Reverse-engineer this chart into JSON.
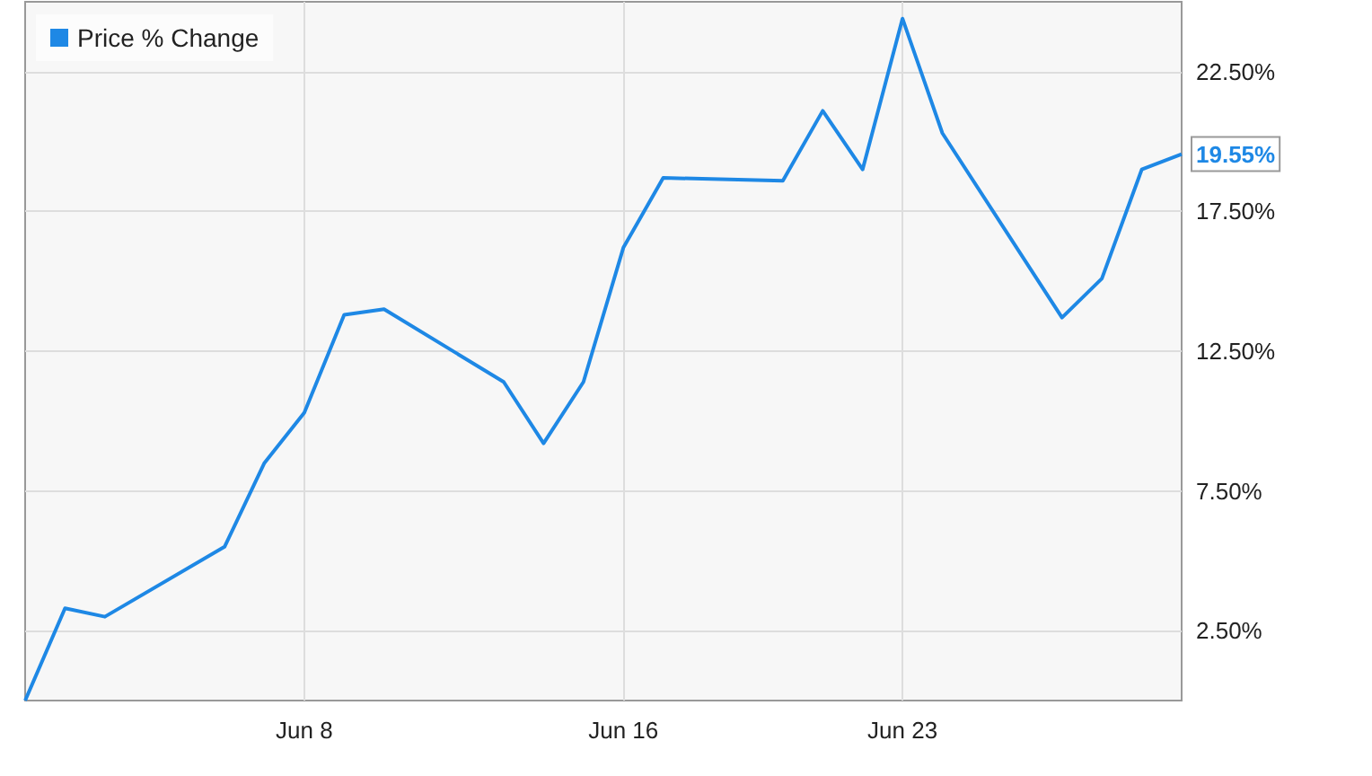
{
  "chart_data": {
    "type": "line",
    "marker": "none",
    "line_style": "solid",
    "grid": true,
    "legend": "top left",
    "x": [
      "--06-01",
      "--06-02",
      "--06-03",
      "--06-06",
      "--06-07",
      "--06-08",
      "--06-09",
      "--06-10",
      "--06-13",
      "--06-14",
      "--06-15",
      "--06-16",
      "--06-17",
      "--06-20",
      "--06-21",
      "--06-22",
      "--06-23",
      "--06-24",
      "--06-27",
      "--06-28",
      "--06-29",
      "--06-30"
    ],
    "series": [
      {
        "name": "Price % Change",
        "color": "#1e88e5",
        "values": [
          0,
          3.3,
          3.0,
          5.5,
          8.5,
          10.3,
          13.8,
          14.0,
          11.4,
          9.2,
          11.4,
          16.2,
          18.7,
          18.6,
          21.1,
          19.0,
          24.4,
          20.3,
          13.7,
          15.1,
          19.0,
          19.55
        ]
      }
    ],
    "xlim": [
      "--06-01",
      "--06-30"
    ],
    "xticks": [
      {
        "value": "--06-08",
        "label": "Jun 8"
      },
      {
        "value": "--06-16",
        "label": "Jun 16"
      },
      {
        "value": "--06-23",
        "label": "Jun 23"
      }
    ],
    "ylim": [
      0,
      25
    ],
    "yticks": [
      {
        "value": 2.5,
        "label": "2.50%"
      },
      {
        "value": 7.5,
        "label": "7.50%"
      },
      {
        "value": 12.5,
        "label": "12.50%"
      },
      {
        "value": 17.5,
        "label": "17.50%"
      },
      {
        "value": 22.5,
        "label": "22.50%"
      }
    ],
    "annotations": [
      {
        "text": "19.55%",
        "x": "--06-30",
        "y": 19.55
      }
    ]
  }
}
